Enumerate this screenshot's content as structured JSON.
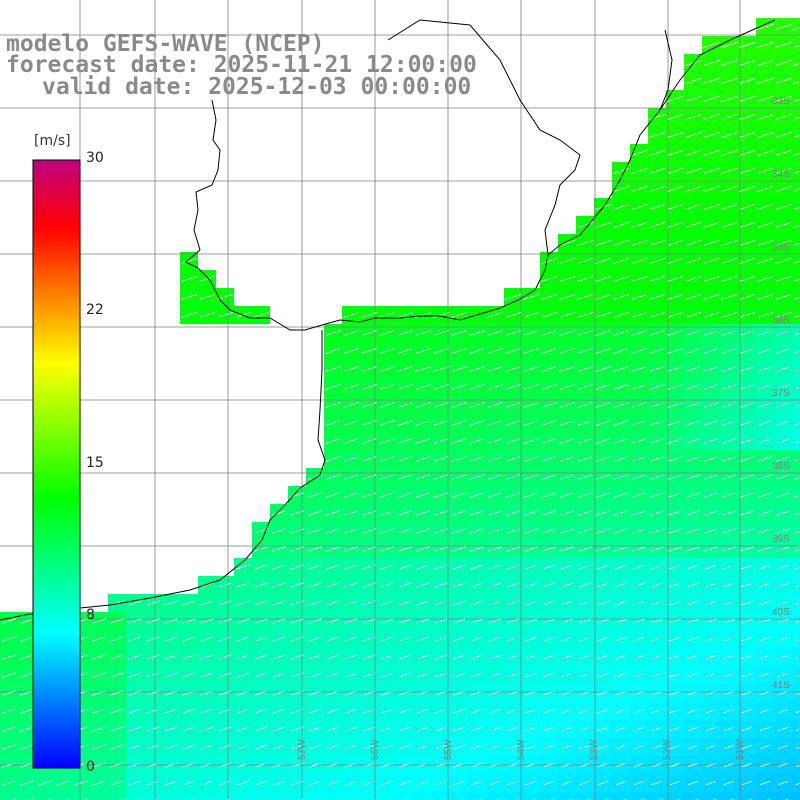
{
  "title": {
    "model": "modelo GEFS-WAVE (NCEP)",
    "forecast_date": "forecast date: 2025-11-21 12:00:00",
    "valid_date": "valid date: 2025-12-03 00:00:00"
  },
  "colorbar": {
    "unit": "[m/s]",
    "min": 0,
    "max": 30,
    "ticks": [
      "30",
      "22",
      "15",
      "8",
      "0"
    ],
    "tick_values": [
      30,
      22,
      15,
      8,
      0
    ],
    "colors": [
      "#0000ff",
      "#0080ff",
      "#00ffff",
      "#00ff80",
      "#00ff00",
      "#80ff00",
      "#ffff00",
      "#ff8000",
      "#ff0000",
      "#c00080"
    ]
  },
  "lon_labels": [
    "57W",
    "56W",
    "55W",
    "54W",
    "53W",
    "52W",
    "51W"
  ],
  "lat_labels": [
    "33S",
    "34S",
    "35S",
    "36S",
    "37S",
    "38S",
    "39S",
    "40S",
    "41S"
  ],
  "map_colors": {
    "land": "#ffffff",
    "grid": "#7f7f7f",
    "coast": "#000000",
    "arrow": "#ffffff"
  }
}
